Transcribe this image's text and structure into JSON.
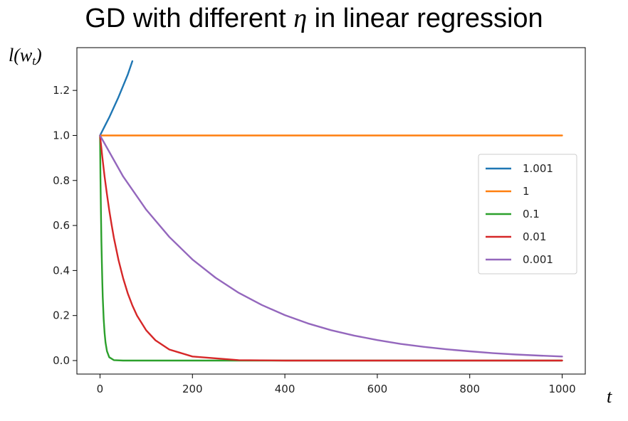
{
  "title": {
    "prefix": "GD with different ",
    "symbol": "η",
    "suffix": " in linear regression"
  },
  "chart_data": {
    "type": "line",
    "title": "GD with different η in linear regression",
    "xlabel": "t",
    "ylabel": "l(w_t)",
    "ylabel_parts": {
      "pre": "l(w",
      "sub": "t",
      "post": ")"
    },
    "xlim": [
      -50,
      1050
    ],
    "ylim": [
      -0.06,
      1.39
    ],
    "xticks": [
      0,
      200,
      400,
      600,
      800,
      1000
    ],
    "xtick_labels": [
      "0",
      "200",
      "400",
      "600",
      "800",
      "1000"
    ],
    "yticks": [
      0.0,
      0.2,
      0.4,
      0.6,
      0.8,
      1.0,
      1.2
    ],
    "ytick_labels": [
      "0.0",
      "0.2",
      "0.4",
      "0.6",
      "0.8",
      "1.0",
      "1.2"
    ],
    "grid": false,
    "legend_position": "center-right",
    "series": [
      {
        "name": "1.001",
        "color": "#1f77b4",
        "x": [
          0,
          10,
          20,
          30,
          40,
          50,
          60,
          70
        ],
        "y": [
          1.0,
          1.04,
          1.08,
          1.125,
          1.17,
          1.22,
          1.27,
          1.33
        ]
      },
      {
        "name": "1",
        "color": "#ff7f0e",
        "x": [
          0,
          1000
        ],
        "y": [
          1.0,
          1.0
        ]
      },
      {
        "name": "0.1",
        "color": "#2ca02c",
        "x": [
          0,
          1,
          2,
          3,
          4,
          5,
          6,
          8,
          10,
          12,
          15,
          20,
          30,
          50,
          100,
          200,
          400,
          600,
          800,
          1000
        ],
        "y": [
          1.0,
          0.81,
          0.656,
          0.531,
          0.43,
          0.349,
          0.282,
          0.185,
          0.122,
          0.08,
          0.042,
          0.015,
          0.002,
          0.0,
          0.0,
          0.0,
          0.0,
          0.0,
          0.0,
          0.0
        ]
      },
      {
        "name": "0.01",
        "color": "#d62728",
        "x": [
          0,
          5,
          10,
          15,
          20,
          25,
          30,
          40,
          50,
          60,
          70,
          80,
          100,
          120,
          150,
          200,
          300,
          400,
          600,
          800,
          1000
        ],
        "y": [
          1.0,
          0.904,
          0.817,
          0.739,
          0.668,
          0.604,
          0.546,
          0.447,
          0.366,
          0.299,
          0.245,
          0.2,
          0.134,
          0.09,
          0.049,
          0.018,
          0.002,
          0.0,
          0.0,
          0.0,
          0.0
        ]
      },
      {
        "name": "0.001",
        "color": "#9467bd",
        "x": [
          0,
          50,
          100,
          150,
          200,
          250,
          300,
          350,
          400,
          450,
          500,
          550,
          600,
          650,
          700,
          750,
          800,
          850,
          900,
          950,
          1000
        ],
        "y": [
          1.0,
          0.818,
          0.67,
          0.549,
          0.449,
          0.368,
          0.301,
          0.247,
          0.202,
          0.165,
          0.135,
          0.111,
          0.091,
          0.074,
          0.061,
          0.05,
          0.041,
          0.033,
          0.027,
          0.022,
          0.018
        ]
      }
    ]
  }
}
